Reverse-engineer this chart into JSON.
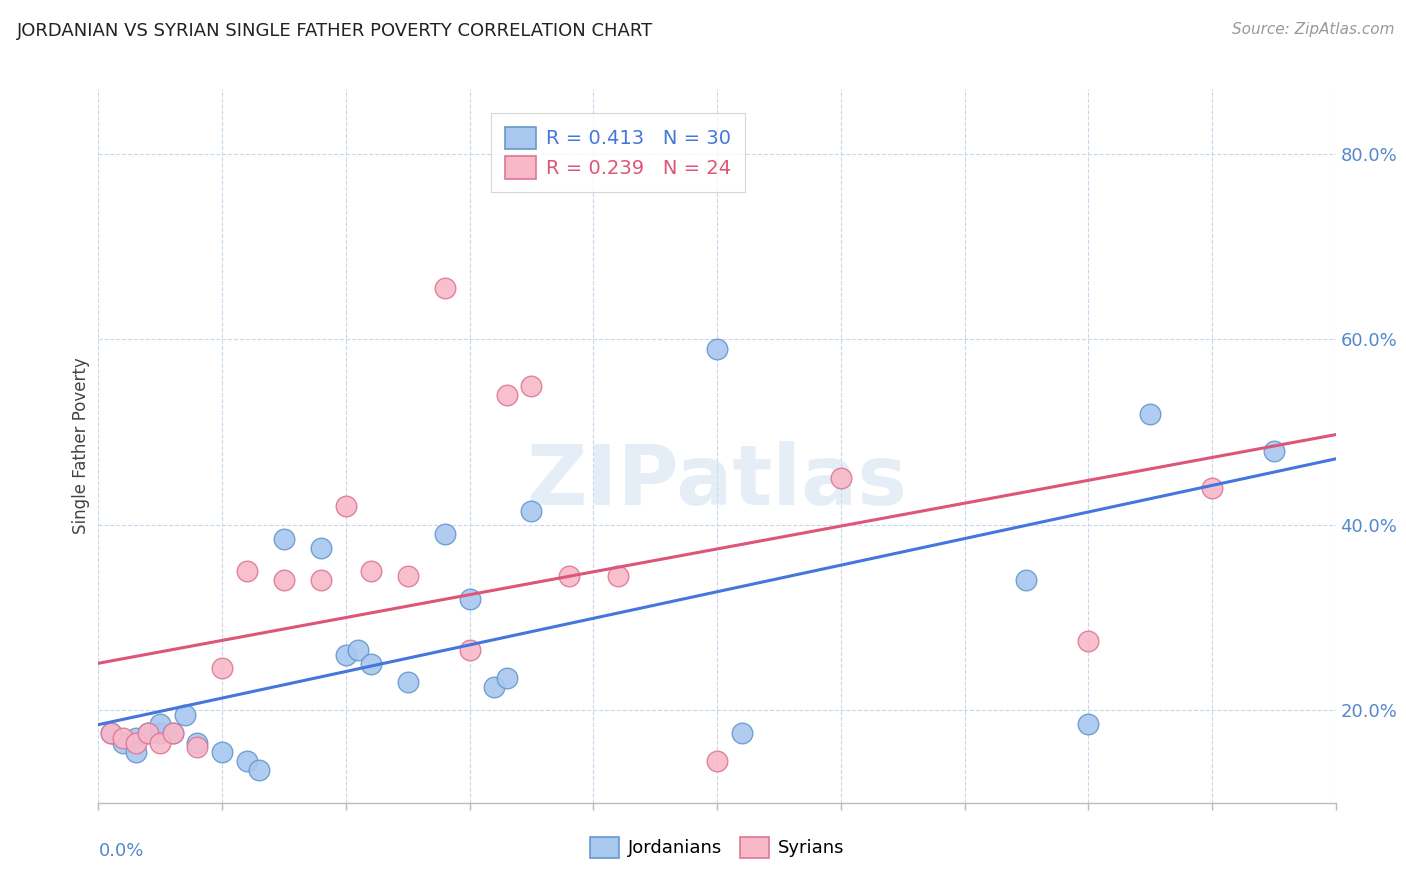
{
  "title": "JORDANIAN VS SYRIAN SINGLE FATHER POVERTY CORRELATION CHART",
  "source": "Source: ZipAtlas.com",
  "ylabel": "Single Father Poverty",
  "y_ticks": [
    0.2,
    0.4,
    0.6,
    0.8
  ],
  "y_tick_labels": [
    "20.0%",
    "40.0%",
    "60.0%",
    "80.0%"
  ],
  "xlim": [
    0.0,
    0.1
  ],
  "ylim": [
    0.1,
    0.87
  ],
  "watermark": "ZIPatlas",
  "jordanian_color": "#A8C8F0",
  "jordanian_edge": "#6699CC",
  "syrian_color": "#F8B8C8",
  "syrian_edge": "#DD7799",
  "line_blue": "#4477DD",
  "line_pink": "#DD5577",
  "tick_color": "#5588CC",
  "jordanians_x": [
    0.001,
    0.002,
    0.003,
    0.003,
    0.004,
    0.005,
    0.005,
    0.006,
    0.007,
    0.008,
    0.01,
    0.012,
    0.013,
    0.015,
    0.018,
    0.02,
    0.021,
    0.022,
    0.025,
    0.028,
    0.03,
    0.032,
    0.033,
    0.035,
    0.05,
    0.052,
    0.075,
    0.08,
    0.085,
    0.095
  ],
  "jordanians_y": [
    0.175,
    0.165,
    0.17,
    0.155,
    0.175,
    0.175,
    0.185,
    0.175,
    0.195,
    0.165,
    0.155,
    0.145,
    0.135,
    0.385,
    0.375,
    0.26,
    0.265,
    0.25,
    0.23,
    0.39,
    0.32,
    0.225,
    0.235,
    0.415,
    0.59,
    0.175,
    0.34,
    0.185,
    0.52,
    0.48
  ],
  "syrians_x": [
    0.001,
    0.002,
    0.003,
    0.004,
    0.005,
    0.006,
    0.008,
    0.01,
    0.012,
    0.015,
    0.018,
    0.02,
    0.022,
    0.025,
    0.028,
    0.03,
    0.033,
    0.035,
    0.038,
    0.042,
    0.05,
    0.06,
    0.08,
    0.09
  ],
  "syrians_y": [
    0.175,
    0.17,
    0.165,
    0.175,
    0.165,
    0.175,
    0.16,
    0.245,
    0.35,
    0.34,
    0.34,
    0.42,
    0.35,
    0.345,
    0.655,
    0.265,
    0.54,
    0.55,
    0.345,
    0.345,
    0.145,
    0.45,
    0.275,
    0.44
  ]
}
